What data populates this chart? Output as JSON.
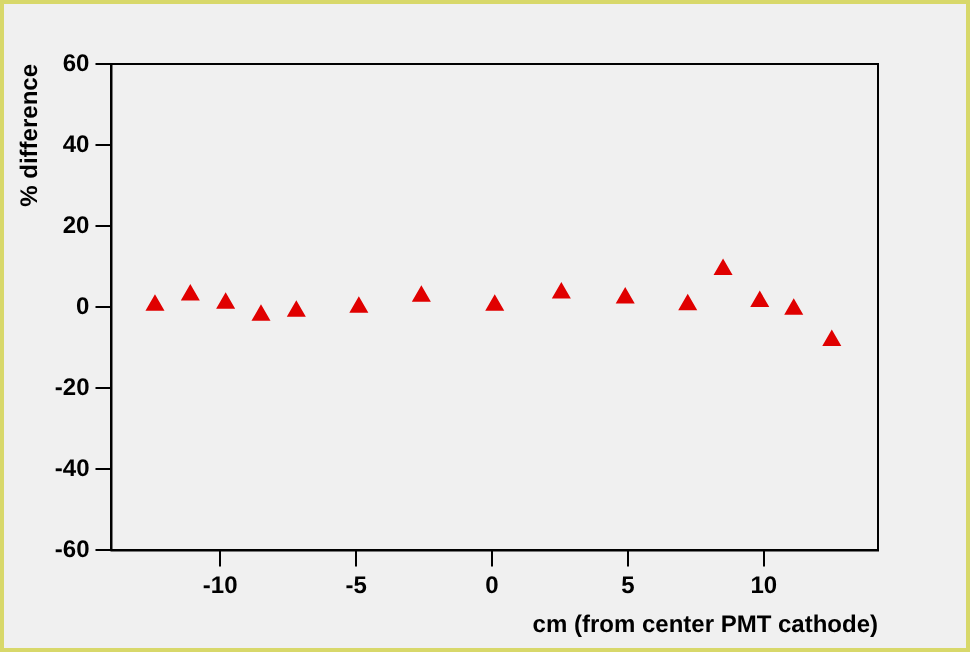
{
  "chart_data": {
    "type": "scatter",
    "xlabel": "cm (from center PMT cathode)",
    "ylabel": "% difference",
    "x": [
      -12.4,
      -11.1,
      -9.8,
      -8.5,
      -7.2,
      -4.9,
      -2.6,
      0.1,
      2.55,
      4.9,
      7.2,
      8.5,
      9.85,
      11.1,
      12.5
    ],
    "series": [
      {
        "color": "#e00000",
        "values": [
          0.5,
          3,
          1,
          -2,
          -1,
          0,
          2.7,
          0.5,
          3.5,
          2.3,
          0.6,
          9.3,
          1.4,
          -0.5,
          -8.2
        ]
      }
    ],
    "xlim": [
      -14,
      14.2
    ],
    "xticks": [
      -10,
      -5,
      0,
      5,
      10
    ],
    "ylim": [
      -60,
      60
    ],
    "yticks": [
      -60,
      -40,
      -20,
      0,
      20,
      40,
      60
    ],
    "grid": false,
    "legend": false,
    "marker": "triangle"
  }
}
